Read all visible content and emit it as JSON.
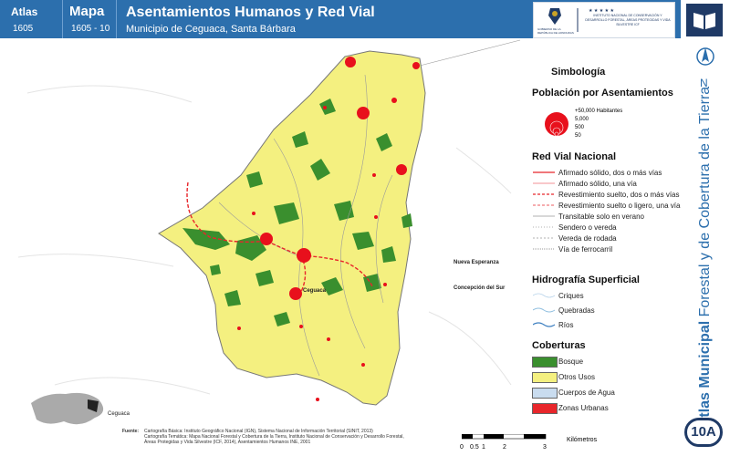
{
  "header": {
    "atlas_label": "Atlas",
    "atlas_value": "1605",
    "mapa_label": "Mapa",
    "mapa_value": "1605 - 10",
    "title": "Asentamientos Humanos y Red Vial",
    "subtitle": "Municipio de Ceguaca, Santa Bárbara",
    "logo_left": "GOBIERNO DE LA REPÚBLICA DE HONDURAS",
    "logo_right": "INSTITUTO NACIONAL DE CONSERVACIÓN Y DESARROLLO FORESTAL, ÁREAS PROTEGIDAS Y VIDA SILVESTRE ICF"
  },
  "side": {
    "north_label": "N",
    "vertical_title_bold": "Atlas Municipal",
    "vertical_title_rest": " Forestal y de Cobertura de la Tierra",
    "badge": "10A"
  },
  "legend": {
    "title": "Simbología",
    "pop_title": "Población por Asentamientos",
    "pop_items": [
      "+50,000 Habitantes",
      "5,000",
      "500",
      "50"
    ],
    "road_title": "Red Vial Nacional",
    "road_items": [
      "Afirmado sólido, dos o más vías",
      "Afirmado sólido, una vía",
      "Revestimiento suelto, dos o más vías",
      "Revestimiento suelto o ligero, una vía",
      "Transitable solo en verano",
      "Sendero o vereda",
      "Vereda de rodada",
      "Vía de ferrocarril"
    ],
    "hydro_title": "Hidrografía Superficial",
    "hydro_items": [
      "Criques",
      "Quebradas",
      "Ríos"
    ],
    "cover_title": "Coberturas",
    "cover_items": [
      {
        "label": "Bosque",
        "color": "#3a8f2e"
      },
      {
        "label": "Otros Usos",
        "color": "#f4f080"
      },
      {
        "label": "Cuerpos de Agua",
        "color": "#c9dcef"
      },
      {
        "label": "Zonas Urbanas",
        "color": "#e8262b"
      }
    ]
  },
  "map": {
    "places": [
      "Ceguaca",
      "Nueva Esperanza",
      "Concepción del Sur"
    ],
    "inset_label": "Ceguaca",
    "colors": {
      "land": "#f4f080",
      "forest": "#3a8f2e",
      "settlement": "#e8101c",
      "road": "#e8262b"
    }
  },
  "scale": {
    "ticks": [
      "0",
      "0.5",
      "1",
      "2",
      "3"
    ],
    "unit": "Kilómetros"
  },
  "footer": {
    "fuente_label": "Fuente:",
    "lines": [
      "Cartografía Básica: Instituto Geográfico Nacional (IGN), Sistema Nacional de Información Territorial (SINIT, 2013)",
      "Cartografía Temática: Mapa Nacional Forestal y Cobertura de la Tierra, Instituto Nacional de Conservación y Desarrollo Forestal,",
      "Áreas Protegidas y Vida Silvestre (ICF, 2014), Asentamientos Humanos INE, 2001"
    ]
  }
}
